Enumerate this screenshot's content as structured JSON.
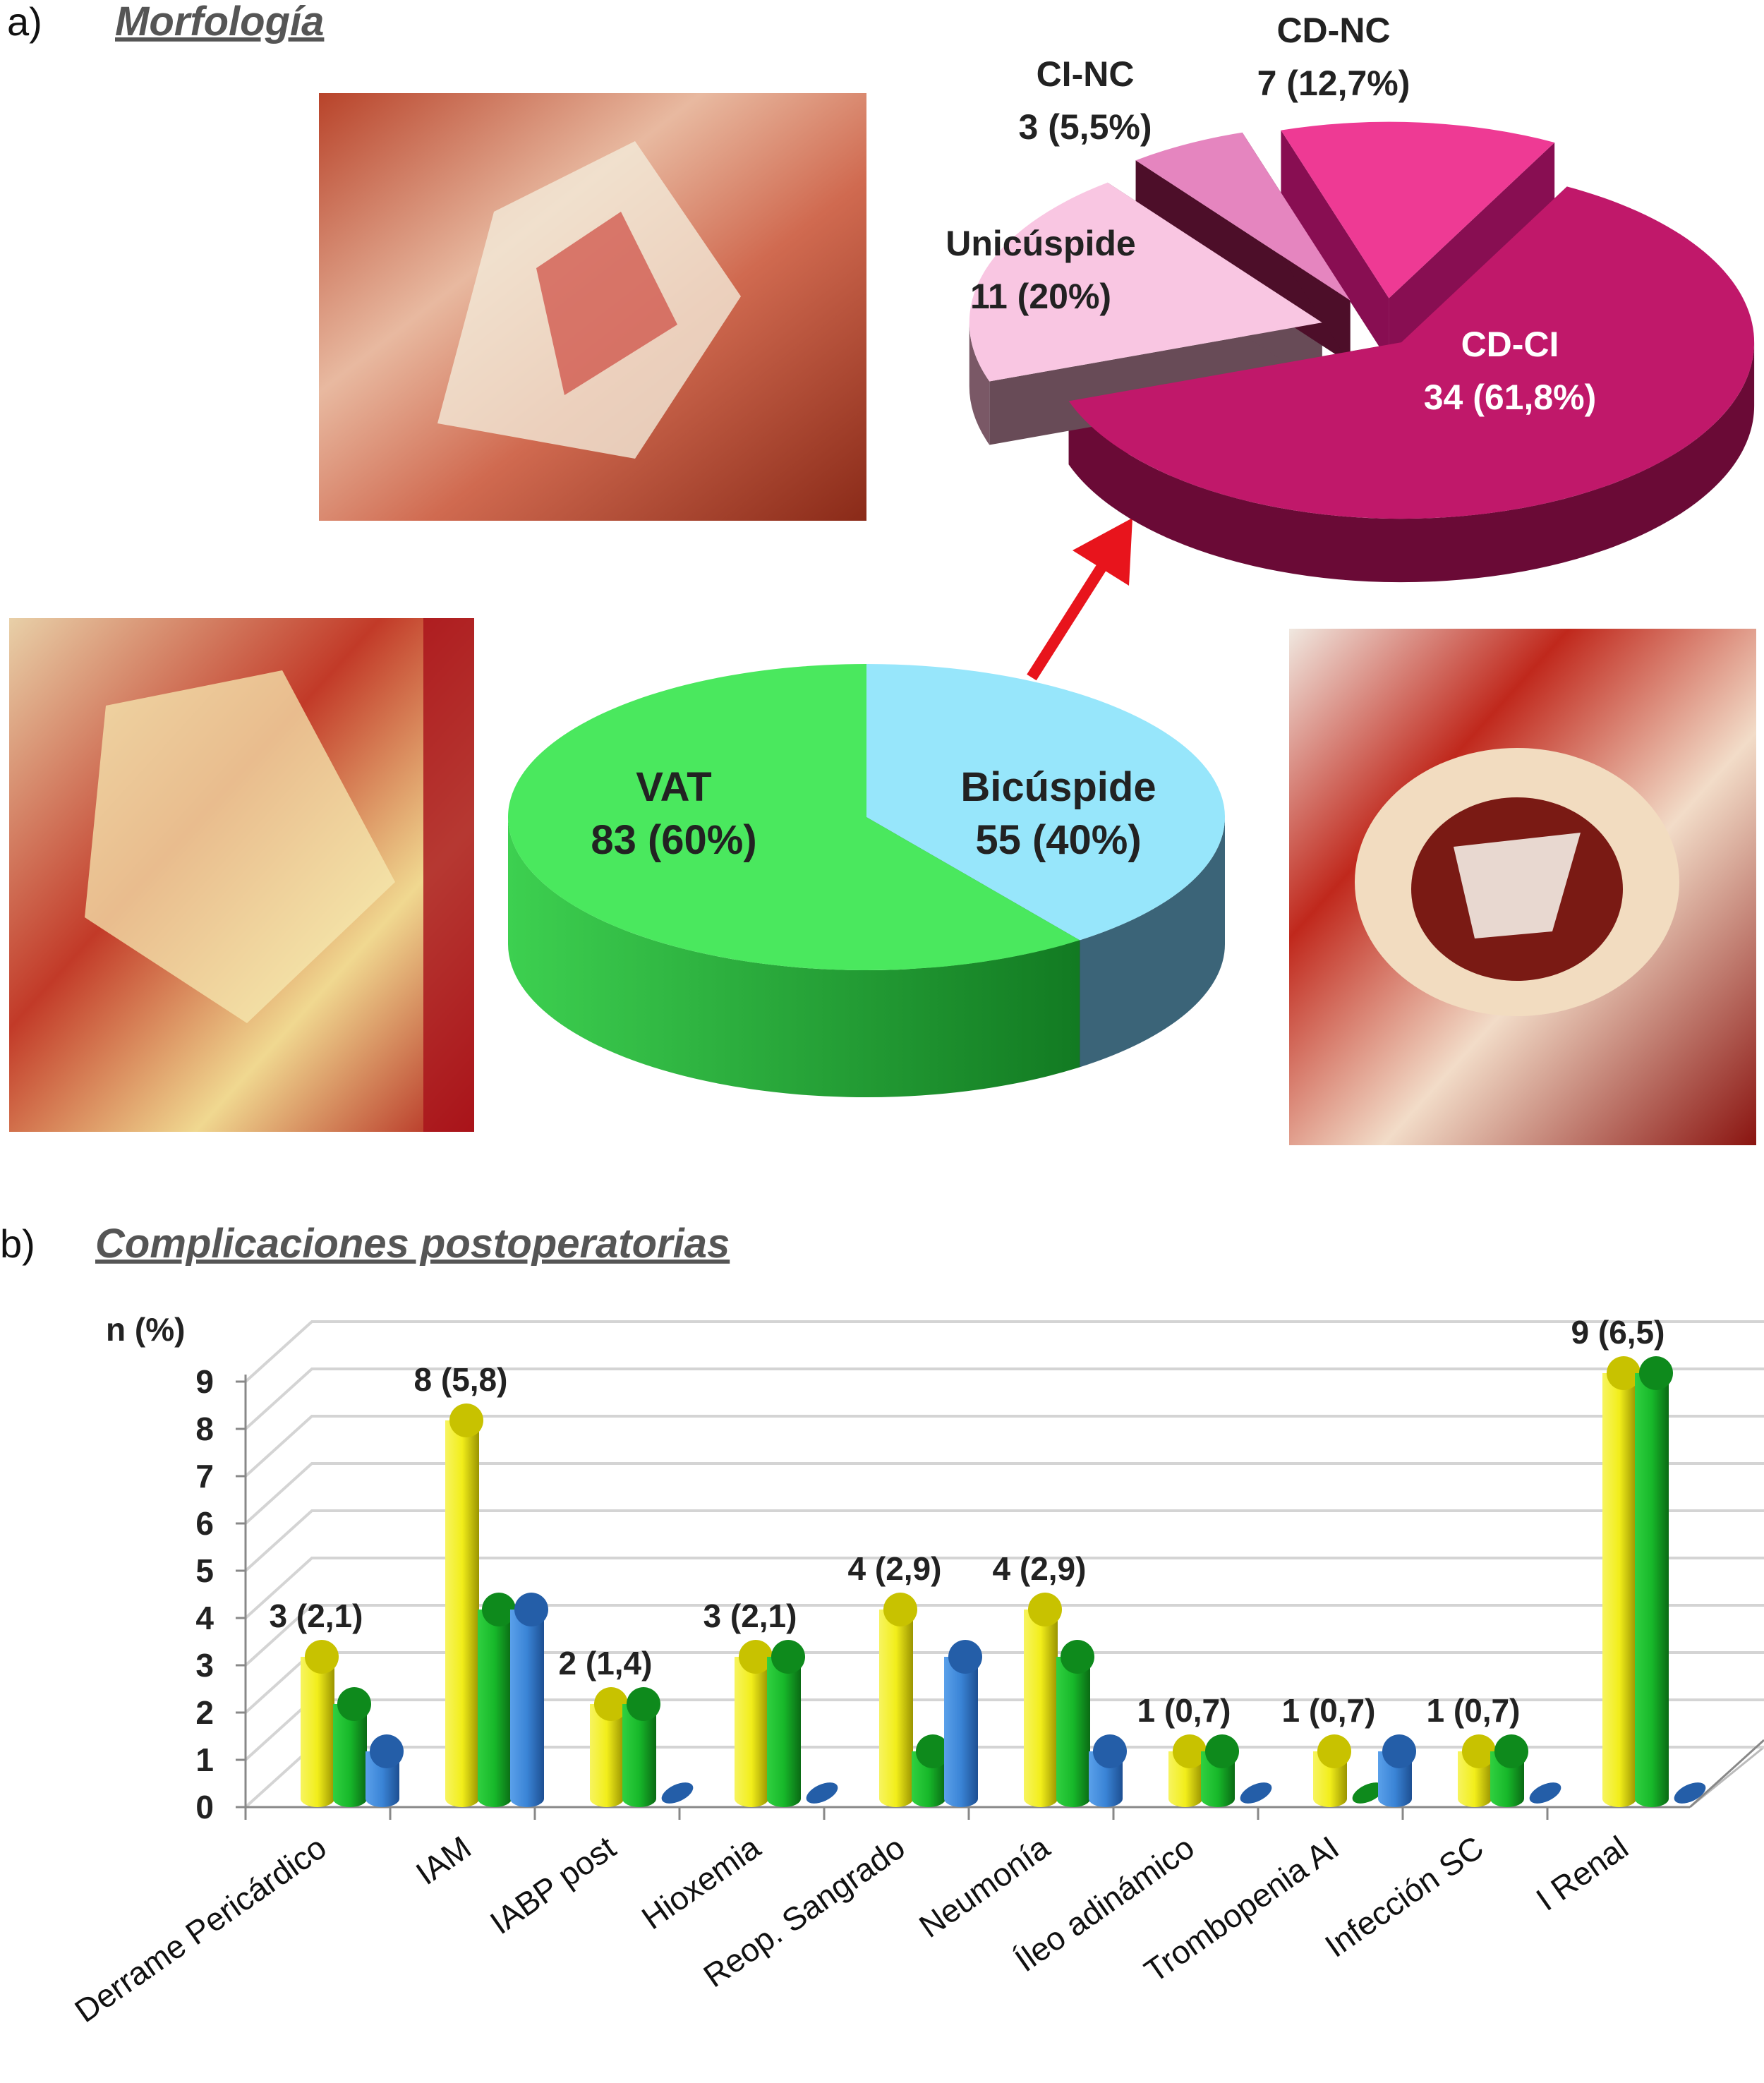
{
  "panel_a": {
    "label": "a)",
    "title": "Morfología"
  },
  "panel_b": {
    "label": "b)",
    "title": "Complicaciones postoperatorias"
  },
  "photos": [
    "valve-photo-top",
    "valve-photo-left",
    "valve-photo-right"
  ],
  "colors": {
    "yellow": "#f2ee1a",
    "green": "#17b82a",
    "blue": "#3a84d6",
    "vat": "#4ae85e",
    "bicuspide": "#97e6fb",
    "arrow": "#e8141c"
  },
  "chart_data": [
    {
      "type": "pie",
      "slices": [
        {
          "name": "VAT",
          "value": 83,
          "label": "83 (60%)",
          "color": "#4ae85e"
        },
        {
          "name": "Bicúspide",
          "value": 55,
          "label": "55 (40%)",
          "color": "#97e6fb"
        }
      ]
    },
    {
      "type": "pie",
      "exploded": true,
      "slices": [
        {
          "name": "CD-CI",
          "value": 34,
          "label": "34 (61,8%)",
          "color": "#c0186a"
        },
        {
          "name": "Unicúspide",
          "value": 11,
          "label": "11 (20%)",
          "color": "#f9c6e2"
        },
        {
          "name": "CI-NC",
          "value": 3,
          "label": "3 (5,5%)",
          "color": "#e585bf"
        },
        {
          "name": "CD-NC",
          "value": 7,
          "label": "7 (12,7%)",
          "color": "#ee3a94"
        }
      ]
    },
    {
      "type": "bar",
      "ylabel": "n (%)",
      "ylim": [
        0,
        9
      ],
      "yticks": [
        "0",
        "1",
        "2",
        "3",
        "4",
        "5",
        "6",
        "7",
        "8",
        "9"
      ],
      "grid": true,
      "categories": [
        "Derrame Pericárdico",
        "IAM",
        "IABP post",
        "Hioxemia",
        "Reop. Sangrado",
        "Neumonía",
        "Íleo adinámico",
        "Trombopenia AI",
        "Infección SC",
        "I Renal"
      ],
      "series": [
        {
          "color": "#f2ee1a",
          "values": [
            3,
            8,
            2,
            3,
            4,
            4,
            1,
            1,
            1,
            9
          ]
        },
        {
          "color": "#17b82a",
          "values": [
            2,
            4,
            2,
            3,
            1,
            3,
            1,
            0,
            1,
            9
          ]
        },
        {
          "color": "#3a84d6",
          "values": [
            1,
            4,
            0,
            0,
            3,
            1,
            0,
            1,
            0,
            0
          ]
        }
      ],
      "data_labels": [
        "3 (2,1)",
        "8 (5,8)",
        "2 (1,4)",
        "3 (2,1)",
        "4 (2,9)",
        "4 (2,9)",
        "1 (0,7)",
        "1 (0,7)",
        "1 (0,7)",
        "9 (6,5)"
      ]
    }
  ]
}
